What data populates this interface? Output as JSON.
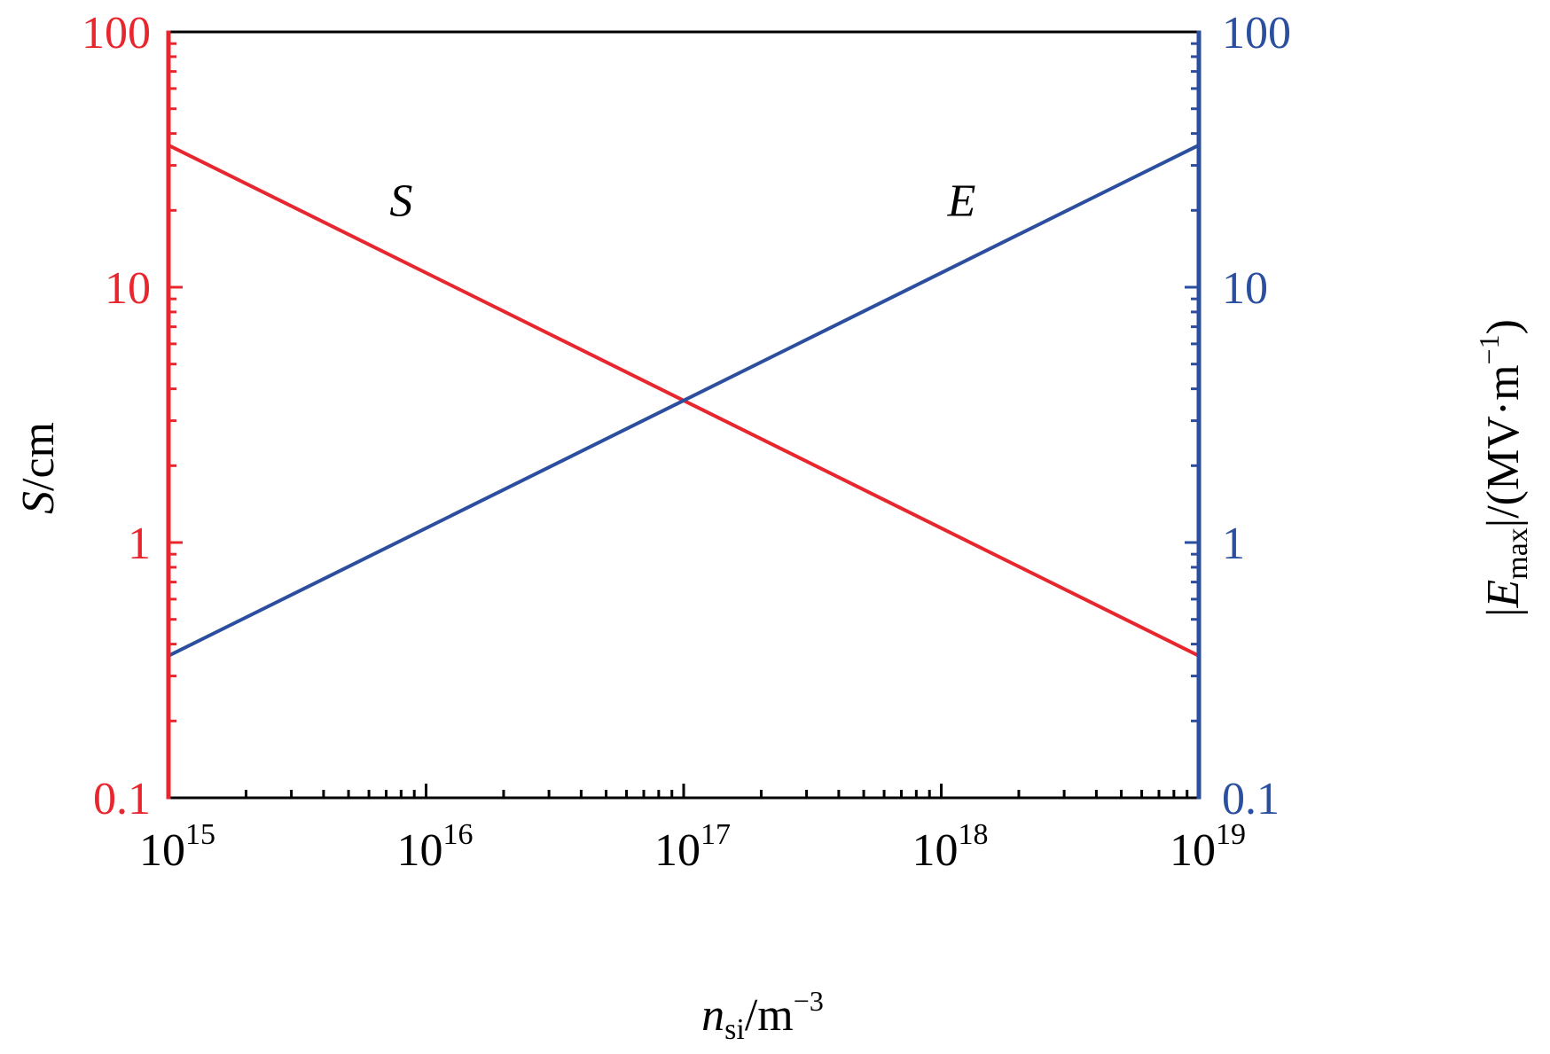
{
  "colors": {
    "left_axis": "#e8262e",
    "right_axis": "#2b4f9e",
    "frame": "#000000",
    "text": "#000000"
  },
  "chart_data": {
    "type": "line",
    "x_scale": "log",
    "xlim": [
      1000000000000000.0,
      1e+19
    ],
    "x_ticks": [
      {
        "value": 1000000000000000.0,
        "base": "10",
        "exp": "15"
      },
      {
        "value": 1e+16,
        "base": "10",
        "exp": "16"
      },
      {
        "value": 1e+17,
        "base": "10",
        "exp": "17"
      },
      {
        "value": 1e+18,
        "base": "10",
        "exp": "18"
      },
      {
        "value": 1e+19,
        "base": "10",
        "exp": "19"
      }
    ],
    "xlabel": {
      "main": "n",
      "sub": "si",
      "unit": "/m",
      "sup": "−3"
    },
    "y_left": {
      "scale": "log",
      "lim": [
        0.1,
        100
      ],
      "ticks": [
        0.1,
        1,
        10,
        100
      ],
      "tick_labels": [
        "0.1",
        "1",
        "10",
        "100"
      ],
      "label_main": "S",
      "label_unit": "/cm"
    },
    "y_right": {
      "scale": "log",
      "lim": [
        0.1,
        100
      ],
      "ticks": [
        0.1,
        1,
        10,
        100
      ],
      "tick_labels": [
        "0.1",
        "1",
        "10",
        "100"
      ],
      "label": {
        "bar_open": "|",
        "main": "E",
        "sub": "max",
        "bar_close": "|",
        "unit": "/(MV·m",
        "sup": "−1",
        "close": ")"
      }
    },
    "series": [
      {
        "name": "S",
        "axis": "left",
        "x": [
          1000000000000000.0,
          1e+19
        ],
        "y": [
          36,
          0.36
        ]
      },
      {
        "name": "E",
        "axis": "right",
        "x": [
          1000000000000000.0,
          1e+19
        ],
        "y": [
          0.36,
          36
        ]
      }
    ],
    "annotations": [
      {
        "text": "S",
        "x": 8000000000000000.0,
        "y": 22
      },
      {
        "text": "E",
        "x": 1.2e+18,
        "y": 22
      }
    ],
    "grid": false
  }
}
